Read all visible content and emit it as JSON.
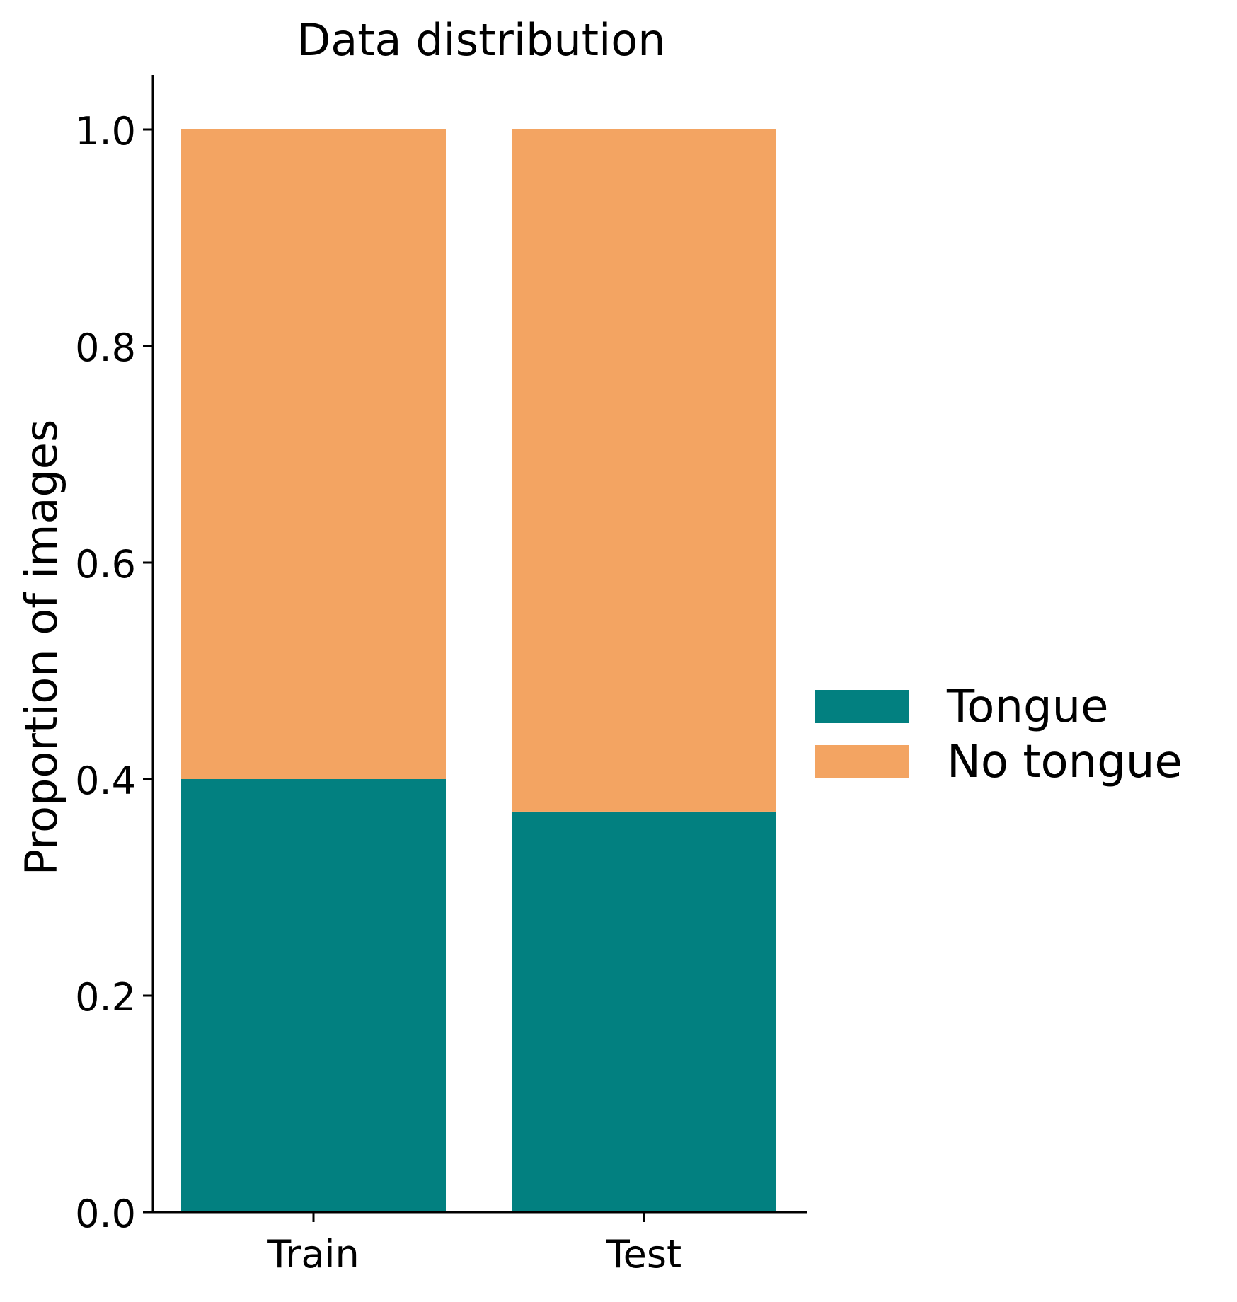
{
  "chart_data": {
    "type": "bar",
    "stacked": true,
    "title": "Data distribution",
    "xlabel": "",
    "ylabel": "Proportion of images",
    "categories": [
      "Train",
      "Test"
    ],
    "series": [
      {
        "name": "Tongue",
        "values": [
          0.4,
          0.37
        ],
        "color": "#028080"
      },
      {
        "name": "No tongue",
        "values": [
          0.6,
          0.63
        ],
        "color": "#F3A462"
      }
    ],
    "ylim": [
      0,
      1.05
    ],
    "yticks": [
      0.0,
      0.2,
      0.4,
      0.6,
      0.8,
      1.0
    ],
    "ytick_labels": [
      "0.0",
      "0.2",
      "0.4",
      "0.6",
      "0.8",
      "1.0"
    ],
    "grid": false,
    "legend_position": "right"
  }
}
